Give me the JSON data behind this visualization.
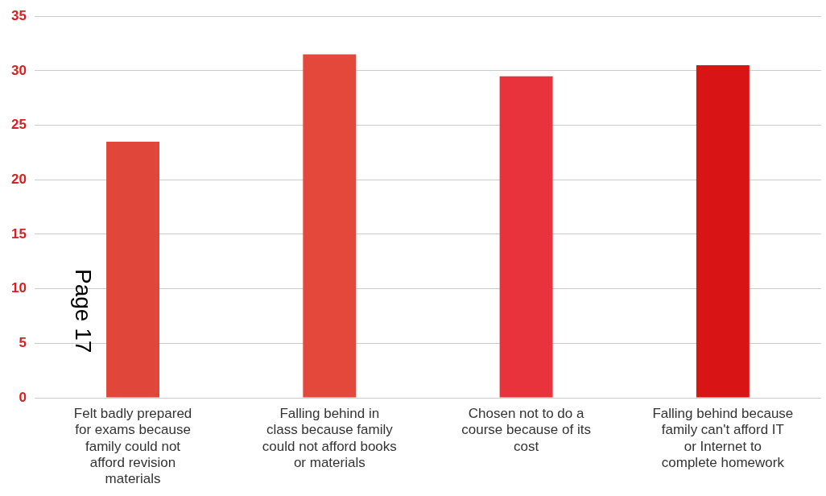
{
  "chart_data": {
    "type": "bar",
    "categories": [
      "Felt badly prepared for exams because family could not afford revision materials",
      "Falling behind in class because family could not afford books or materials",
      "Chosen not to do a course because of its cost",
      "Falling behind because family can't afford IT or Internet to complete homework"
    ],
    "values": [
      23.5,
      31.5,
      29.5,
      30.5
    ],
    "colors": [
      "#e0463a",
      "#e4483a",
      "#e8323c",
      "#d81414"
    ],
    "ylim": [
      0,
      35
    ],
    "yticks": [
      0,
      5,
      10,
      15,
      20,
      25,
      30,
      35
    ],
    "grid": "y",
    "annotations": [
      "Page 17"
    ]
  }
}
